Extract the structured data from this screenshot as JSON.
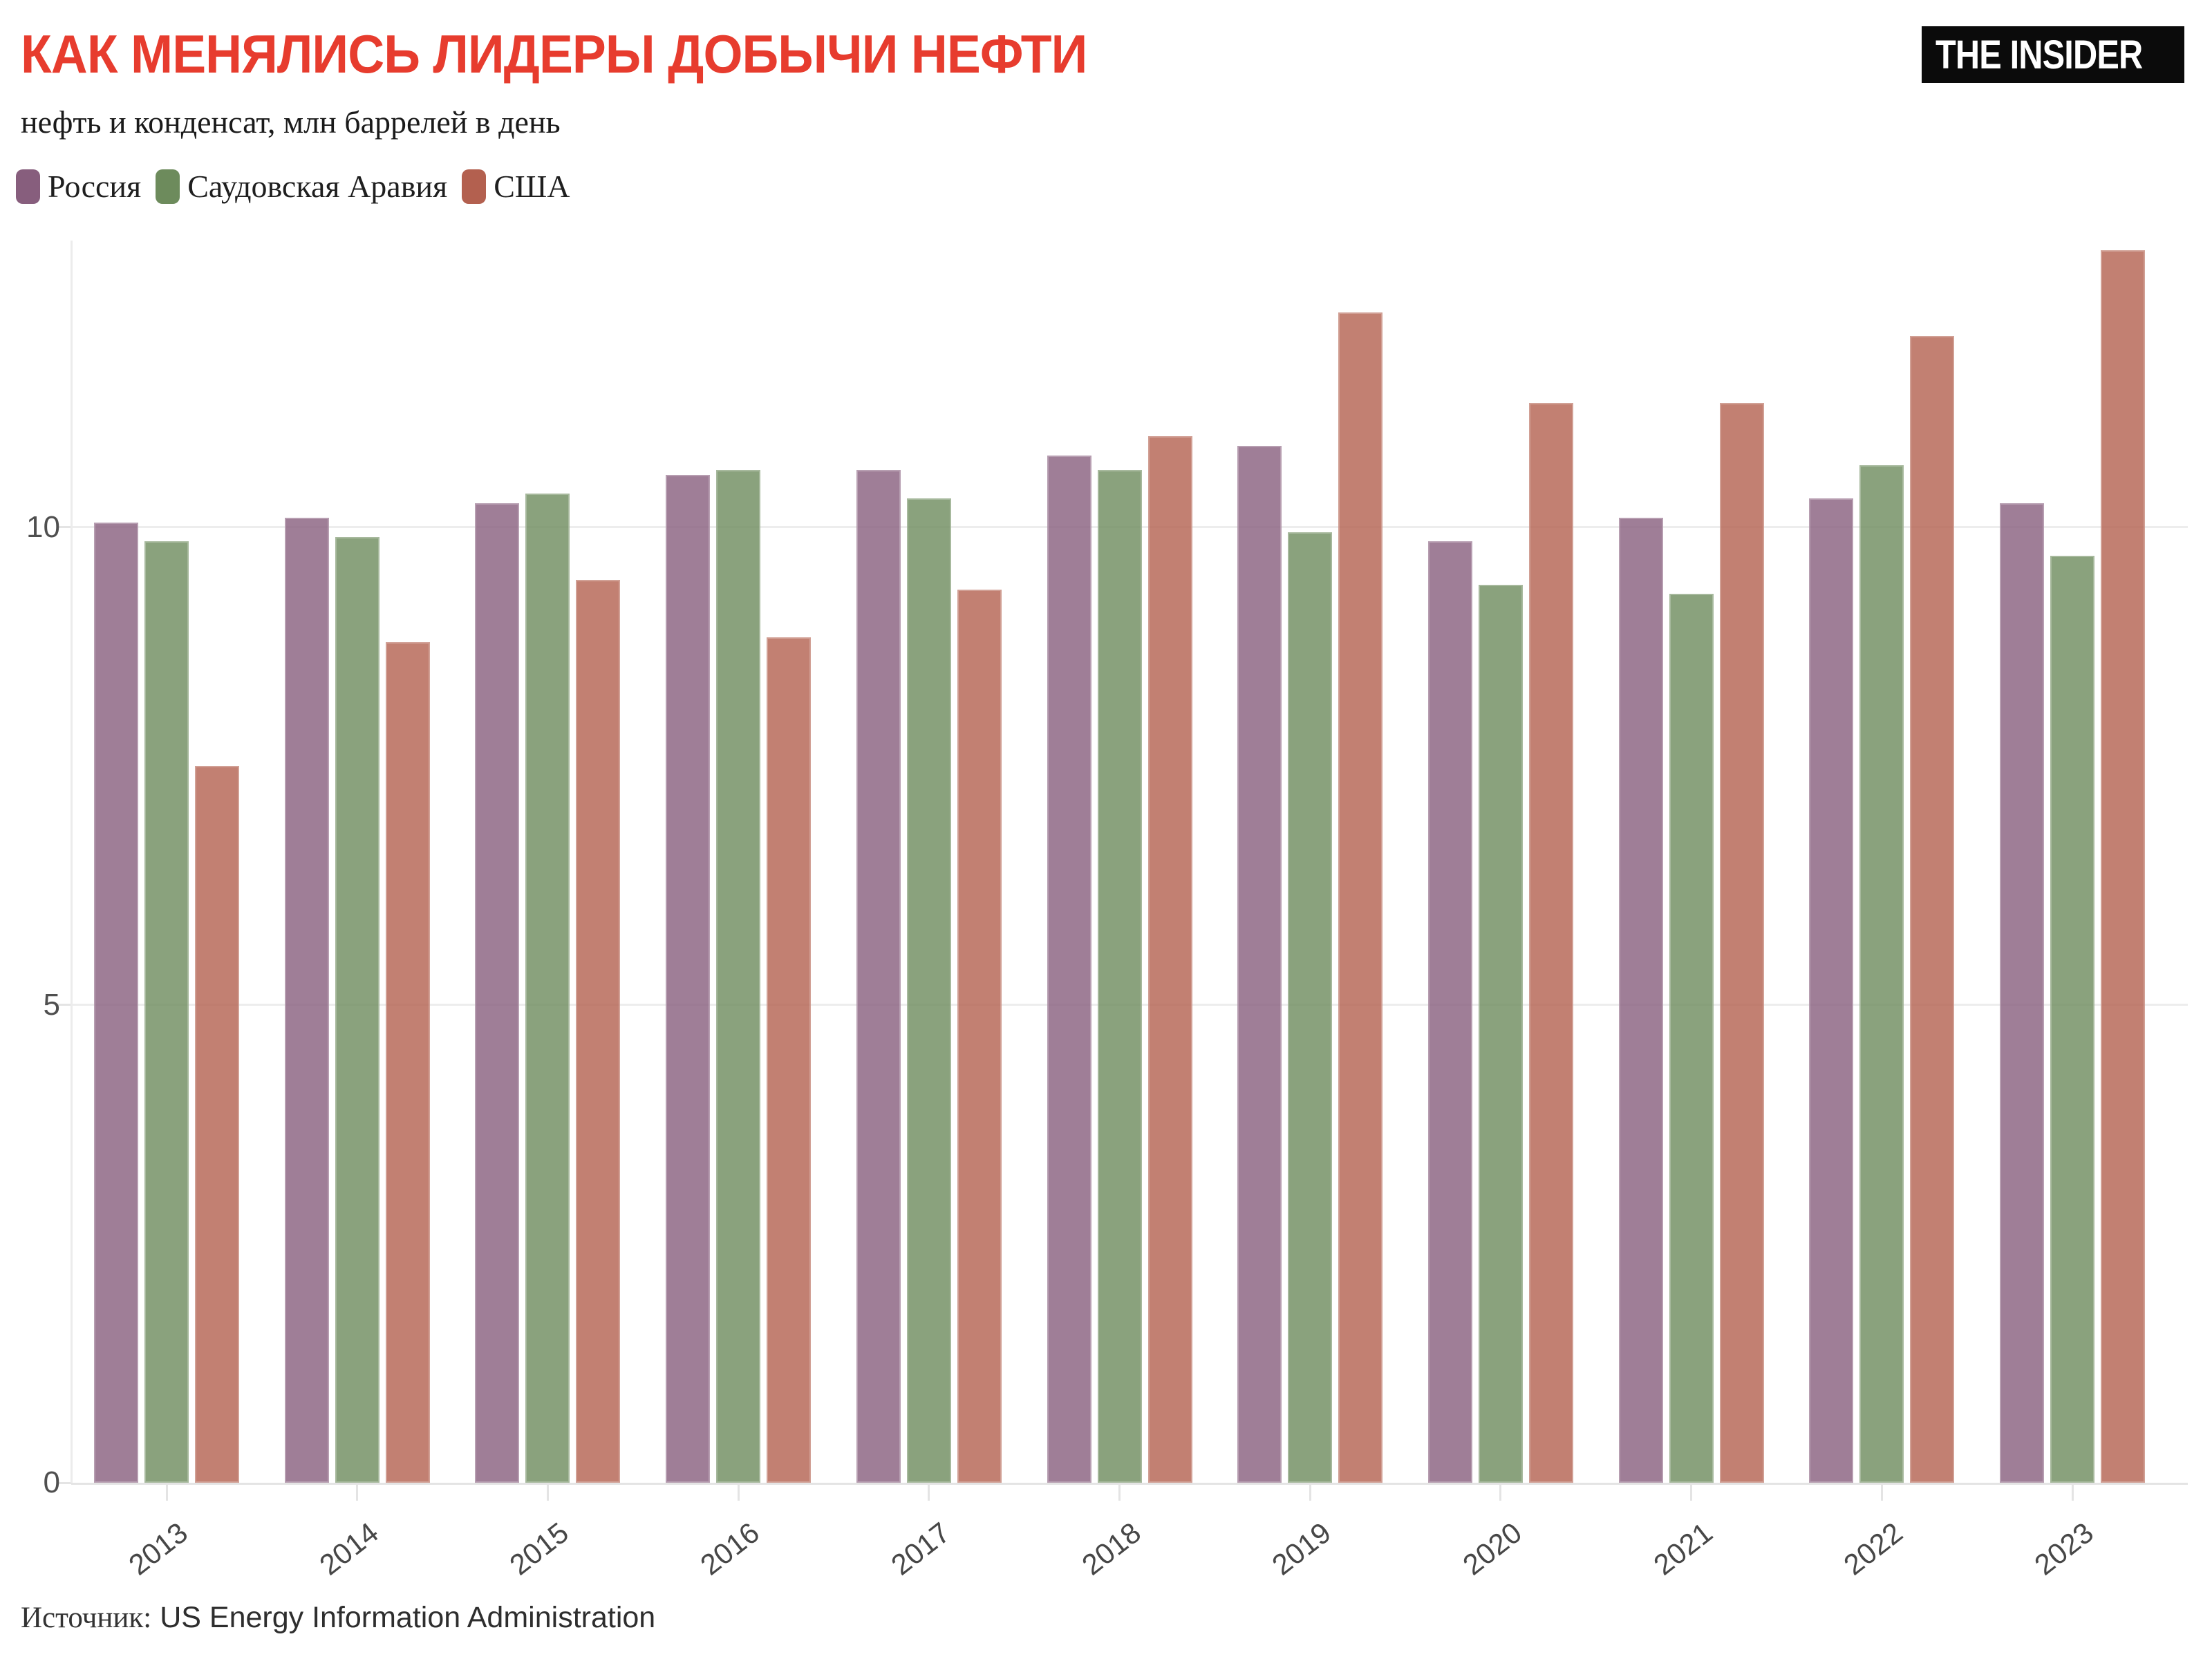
{
  "header": {
    "title": "КАК МЕНЯЛИСЬ ЛИДЕРЫ ДОБЫЧИ НЕФТИ",
    "title_color": "#e73c2e",
    "subtitle": "нефть и конденсат, млн баррелей в день",
    "logo_text": "THE INSIDER"
  },
  "footer": {
    "source_label": "Источник:",
    "source_value": "US Energy Information Administration"
  },
  "chart_data": {
    "type": "bar",
    "title": "КАК МЕНЯЛИСЬ ЛИДЕРЫ ДОБЫЧИ НЕФТИ",
    "subtitle": "нефть и конденсат, млн баррелей в день",
    "categories": [
      "2013",
      "2014",
      "2015",
      "2016",
      "2017",
      "2018",
      "2019",
      "2020",
      "2021",
      "2022",
      "2023"
    ],
    "series": [
      {
        "key": "russia",
        "name": "Россия",
        "legend_color": "#875e7d",
        "bar_fill": "rgba(135,94,125,0.8)",
        "values": [
          10.05,
          10.1,
          10.25,
          10.55,
          10.6,
          10.75,
          10.85,
          9.85,
          10.1,
          10.3,
          10.25
        ]
      },
      {
        "key": "saudi-arabia",
        "name": "Саудовская Аравия",
        "legend_color": "#6d8b5c",
        "bar_fill": "rgba(109,139,92,0.8)",
        "values": [
          9.85,
          9.9,
          10.35,
          10.6,
          10.3,
          10.6,
          9.95,
          9.4,
          9.3,
          10.65,
          9.7
        ]
      },
      {
        "key": "usa",
        "name": "США",
        "legend_color": "#b3604f",
        "bar_fill": "rgba(179,96,79,0.8)",
        "values": [
          7.5,
          8.8,
          9.45,
          8.85,
          9.35,
          10.95,
          12.25,
          11.3,
          11.3,
          12.0,
          12.9
        ]
      }
    ],
    "xlabel": "",
    "ylabel": "",
    "ylim": [
      0,
      13
    ],
    "yticks": [
      0,
      5,
      10
    ],
    "grid": true,
    "legend_position": "top-left"
  }
}
